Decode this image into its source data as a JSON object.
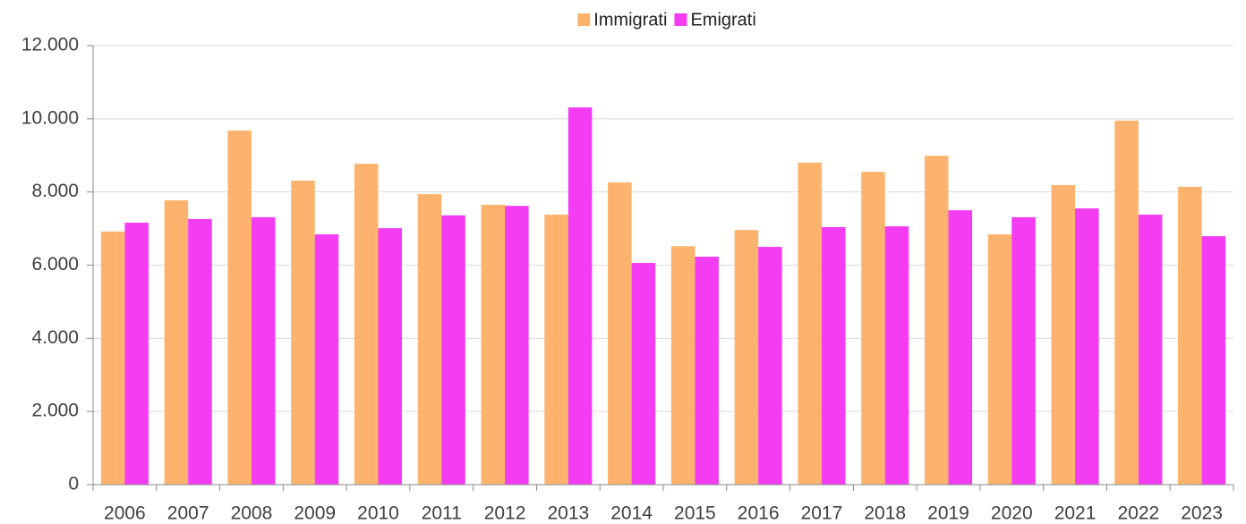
{
  "chart_data": {
    "type": "bar",
    "categories": [
      "2006",
      "2007",
      "2008",
      "2009",
      "2010",
      "2011",
      "2012",
      "2013",
      "2014",
      "2015",
      "2016",
      "2017",
      "2018",
      "2019",
      "2020",
      "2021",
      "2022",
      "2023"
    ],
    "series": [
      {
        "name": "Immigrati",
        "color": "#fdb36d",
        "values": [
          6920,
          7770,
          9680,
          8310,
          8770,
          7940,
          7650,
          7380,
          8260,
          6520,
          6960,
          8800,
          8550,
          8990,
          6840,
          8190,
          9950,
          8140
        ]
      },
      {
        "name": "Emigrati",
        "color": "#f43cf3",
        "values": [
          7160,
          7260,
          7310,
          6840,
          7010,
          7360,
          7620,
          10310,
          6060,
          6230,
          6500,
          7040,
          7060,
          7500,
          7310,
          7550,
          7380,
          6790
        ]
      }
    ],
    "ylim": [
      0,
      12000
    ],
    "yticks": [
      0,
      {
        "value": 2000,
        "label": "2.000"
      },
      {
        "value": 4000,
        "label": "4.000"
      },
      {
        "value": 6000,
        "label": "6.000"
      },
      {
        "value": 8000,
        "label": "8.000"
      },
      {
        "value": 10000,
        "label": "10.000"
      },
      {
        "value": 12000,
        "label": "12.000"
      }
    ],
    "grid": true,
    "legend": "top"
  }
}
